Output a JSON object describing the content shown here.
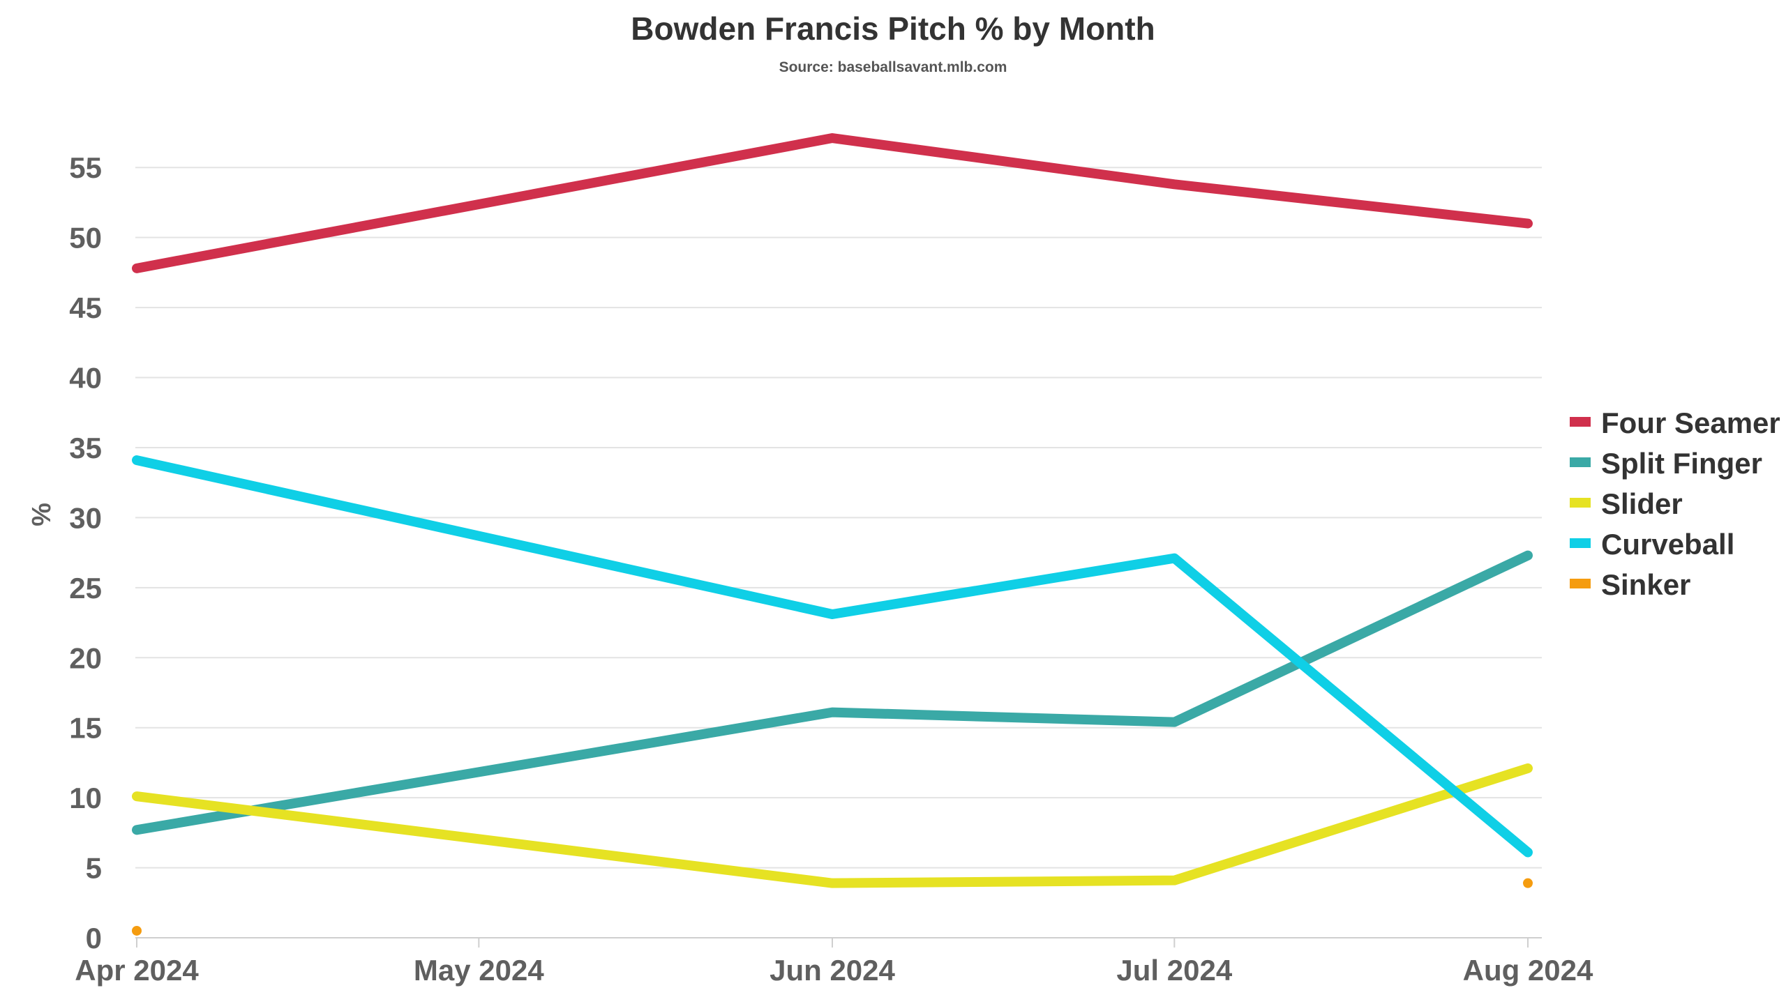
{
  "chart_data": {
    "type": "line",
    "title": "Bowden Francis Pitch % by Month",
    "subtitle": "Source: baseballsavant.mlb.com",
    "xlabel": "",
    "ylabel": "%",
    "x_dates": [
      "2024-04-01",
      "2024-06-01",
      "2024-07-01",
      "2024-08-01"
    ],
    "x_ticks": [
      {
        "label": "Apr 2024",
        "date": "2024-04-01"
      },
      {
        "label": "May 2024",
        "date": "2024-05-01"
      },
      {
        "label": "Jun 2024",
        "date": "2024-06-01"
      },
      {
        "label": "Jul 2024",
        "date": "2024-07-01"
      },
      {
        "label": "Aug 2024",
        "date": "2024-08-01"
      }
    ],
    "ylim": [
      0,
      57.5
    ],
    "y_ticks": [
      0,
      5,
      10,
      15,
      20,
      25,
      30,
      35,
      40,
      45,
      50,
      55
    ],
    "grid": true,
    "legend_position": "right",
    "series": [
      {
        "name": "Four Seamer",
        "color": "#d0304c",
        "values": [
          47.8,
          57.1,
          53.8,
          51.0
        ]
      },
      {
        "name": "Split Finger",
        "color": "#3aa9a6",
        "values": [
          7.7,
          16.1,
          15.4,
          27.3
        ]
      },
      {
        "name": "Slider",
        "color": "#e6e223",
        "values": [
          10.1,
          3.9,
          4.1,
          12.1
        ]
      },
      {
        "name": "Curveball",
        "color": "#0fcfe6",
        "values": [
          34.1,
          23.1,
          27.1,
          6.1
        ]
      },
      {
        "name": "Sinker",
        "color": "#f59c0f",
        "values": [
          0.5,
          null,
          null,
          3.9
        ]
      }
    ]
  }
}
